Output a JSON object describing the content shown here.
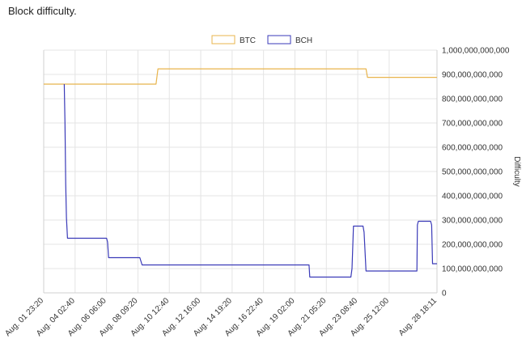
{
  "page": {
    "title": "Block difficulty."
  },
  "chart_data": {
    "type": "line",
    "xlabel": "",
    "ylabel": "Difficulty",
    "ylim": [
      0,
      1000000000000
    ],
    "y_ticks": [
      0,
      100000000000,
      200000000000,
      300000000000,
      400000000000,
      500000000000,
      600000000000,
      700000000000,
      800000000000,
      900000000000,
      1000000000000
    ],
    "y_tick_labels": [
      "0",
      "100,000,000,000",
      "200,000,000,000",
      "300,000,000,000",
      "400,000,000,000",
      "500,000,000,000",
      "600,000,000,000",
      "700,000,000,000",
      "800,000,000,000",
      "900,000,000,000",
      "1,000,000,000,000"
    ],
    "x_tick_labels": [
      "Aug. 01 23:20",
      "Aug. 04 02:40",
      "Aug. 06 06:00",
      "Aug. 08 09:20",
      "Aug. 10 12:40",
      "Aug. 12 16:00",
      "Aug. 14 19:20",
      "Aug. 16 22:40",
      "Aug. 19 02:00",
      "Aug. 21 05:20",
      "Aug. 23 08:40",
      "Aug. 25 12:00",
      "Aug. 28 18:11"
    ],
    "x_tick_positions": [
      0,
      2.139,
      4.278,
      6.417,
      8.556,
      10.694,
      12.833,
      14.972,
      17.111,
      19.25,
      21.389,
      23.528,
      26.785
    ],
    "x_range": [
      0,
      26.785
    ],
    "x_unit": "days since Aug. 01 23:20",
    "grid": true,
    "legend": "top",
    "series": [
      {
        "name": "BTC",
        "color": "#e8b44c",
        "x": [
          0,
          7.65,
          7.78,
          21.95,
          22.05,
          26.785
        ],
        "y": [
          860000000000,
          860000000000,
          923000000000,
          923000000000,
          888000000000,
          888000000000
        ]
      },
      {
        "name": "BCH",
        "color": "#3a3ab8",
        "x": [
          1.4,
          1.45,
          1.5,
          1.55,
          1.62,
          4.28,
          4.35,
          4.42,
          6.55,
          6.7,
          18.07,
          18.12,
          20.92,
          21.0,
          21.1,
          21.75,
          21.82,
          21.95,
          25.42,
          25.45,
          25.52,
          26.35,
          26.42,
          26.48,
          26.785
        ],
        "y": [
          860000000000,
          700000000000,
          450000000000,
          310000000000,
          225000000000,
          225000000000,
          210000000000,
          145000000000,
          145000000000,
          115000000000,
          115000000000,
          65000000000,
          65000000000,
          100000000000,
          275000000000,
          275000000000,
          250000000000,
          90000000000,
          90000000000,
          280000000000,
          295000000000,
          295000000000,
          280000000000,
          120000000000,
          120000000000
        ]
      }
    ]
  }
}
